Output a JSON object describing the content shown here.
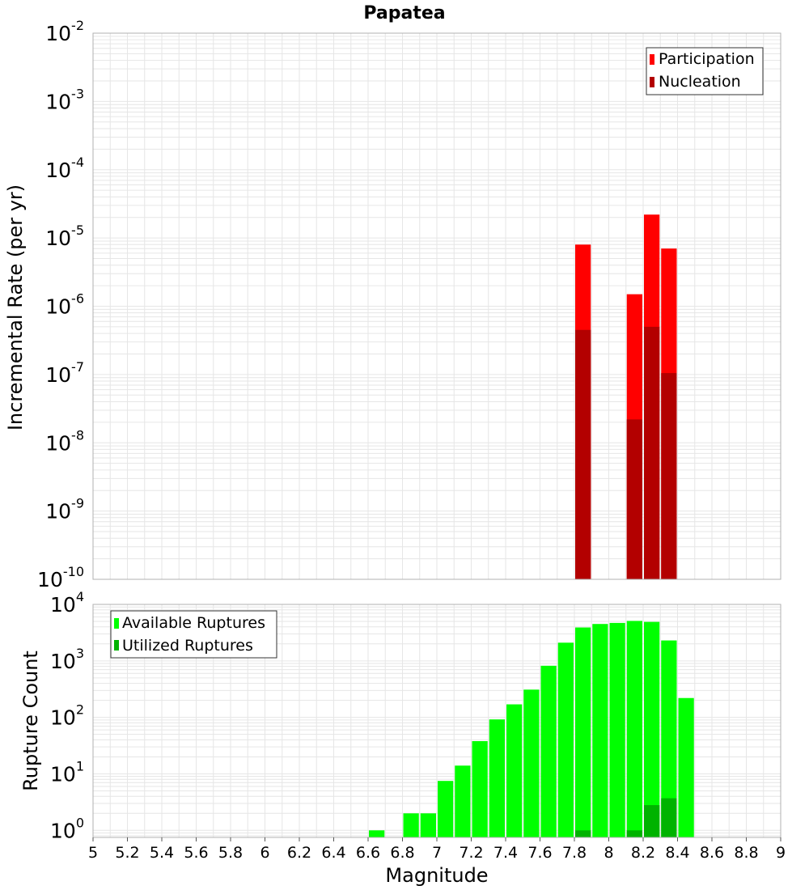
{
  "title": "Papatea",
  "colors": {
    "participation": "#ff0000",
    "nucleation": "#b30000",
    "available": "#00ff00",
    "utilized": "#00b300",
    "grid": "#e6e6e6",
    "frame": "#b0b0b0"
  },
  "chart_data": [
    {
      "type": "bar",
      "scale": "log",
      "title": "Papatea",
      "xlabel": "",
      "ylabel": "Incremental Rate (per yr)",
      "xlim": [
        5,
        9
      ],
      "ylim": [
        1e-10,
        0.01
      ],
      "y_tick_exponents": [
        "-10",
        "-9",
        "-8",
        "-7",
        "-6",
        "-5",
        "-4",
        "-3",
        "-2"
      ],
      "bin_width": 0.1,
      "grid": true,
      "legend": "top-right",
      "series": [
        {
          "name": "Participation",
          "color": "#ff0000",
          "points": [
            {
              "x": 7.85,
              "y": 8e-06
            },
            {
              "x": 8.15,
              "y": 1.5e-06
            },
            {
              "x": 8.25,
              "y": 2.2e-05
            },
            {
              "x": 8.35,
              "y": 7e-06
            }
          ]
        },
        {
          "name": "Nucleation",
          "color": "#b30000",
          "points": [
            {
              "x": 7.85,
              "y": 4.5e-07
            },
            {
              "x": 8.15,
              "y": 2.2e-08
            },
            {
              "x": 8.25,
              "y": 5e-07
            },
            {
              "x": 8.35,
              "y": 1.05e-07
            }
          ]
        }
      ]
    },
    {
      "type": "bar",
      "scale": "log",
      "xlabel": "Magnitude",
      "ylabel": "Rupture Count",
      "xlim": [
        5,
        9
      ],
      "ylim": [
        0.75,
        10000
      ],
      "y_tick_exponents": [
        "0",
        "1",
        "2",
        "3",
        "4"
      ],
      "x_ticks": [
        "5",
        "5.2",
        "5.4",
        "5.6",
        "5.8",
        "6",
        "6.2",
        "6.4",
        "6.6",
        "6.8",
        "7",
        "7.2",
        "7.4",
        "7.6",
        "7.8",
        "8",
        "8.2",
        "8.4",
        "8.6",
        "8.8",
        "9"
      ],
      "bin_width": 0.1,
      "grid": true,
      "legend": "top-left",
      "series": [
        {
          "name": "Available Ruptures",
          "color": "#00ff00",
          "points": [
            {
              "x": 6.65,
              "y": 1
            },
            {
              "x": 6.85,
              "y": 2
            },
            {
              "x": 6.95,
              "y": 2
            },
            {
              "x": 7.05,
              "y": 7.5
            },
            {
              "x": 7.15,
              "y": 14
            },
            {
              "x": 7.25,
              "y": 38
            },
            {
              "x": 7.35,
              "y": 92
            },
            {
              "x": 7.45,
              "y": 170
            },
            {
              "x": 7.55,
              "y": 310
            },
            {
              "x": 7.65,
              "y": 820
            },
            {
              "x": 7.75,
              "y": 2100
            },
            {
              "x": 7.85,
              "y": 3900
            },
            {
              "x": 7.95,
              "y": 4500
            },
            {
              "x": 8.05,
              "y": 4700
            },
            {
              "x": 8.15,
              "y": 5100
            },
            {
              "x": 8.25,
              "y": 4900
            },
            {
              "x": 8.35,
              "y": 2300
            },
            {
              "x": 8.45,
              "y": 220
            }
          ]
        },
        {
          "name": "Utilized Ruptures",
          "color": "#00b300",
          "points": [
            {
              "x": 7.85,
              "y": 1
            },
            {
              "x": 8.15,
              "y": 1
            },
            {
              "x": 8.25,
              "y": 2.8
            },
            {
              "x": 8.35,
              "y": 3.7
            }
          ]
        }
      ]
    }
  ]
}
